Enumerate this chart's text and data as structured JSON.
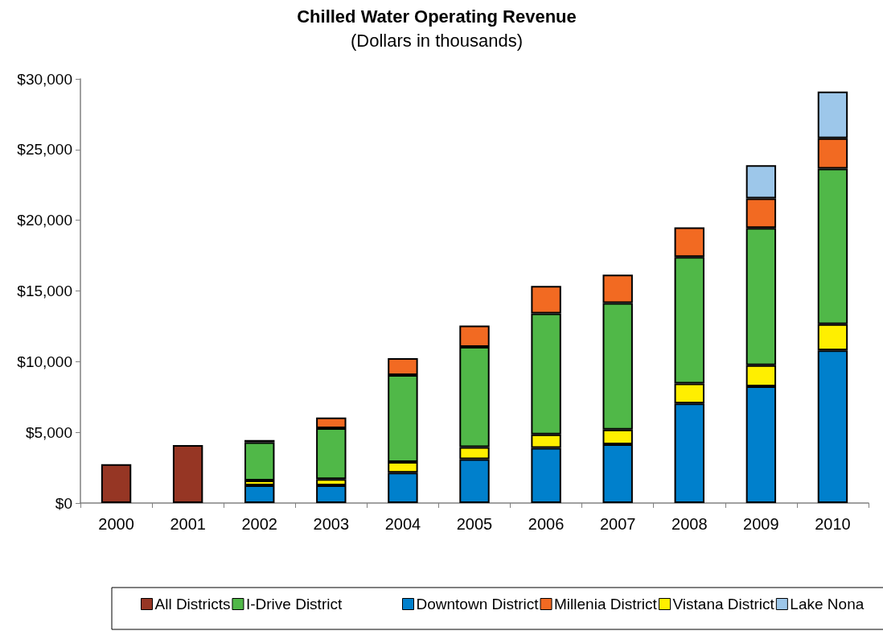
{
  "chart_data": {
    "type": "bar",
    "title": "Chilled Water Operating Revenue",
    "subtitle": "(Dollars in thousands)",
    "stacked": true,
    "legend": "bottom",
    "grid": false,
    "categories": [
      "2000",
      "2001",
      "2002",
      "2003",
      "2004",
      "2005",
      "2006",
      "2007",
      "2008",
      "2009",
      "2010"
    ],
    "ylim": [
      0,
      30000
    ],
    "yticks": [
      {
        "value": 0,
        "label": "$0"
      },
      {
        "value": 5000,
        "label": "$5,000"
      },
      {
        "value": 10000,
        "label": "$10,000"
      },
      {
        "value": 15000,
        "label": "$15,000"
      },
      {
        "value": 20000,
        "label": "$20,000"
      },
      {
        "value": 25000,
        "label": "$25,000"
      },
      {
        "value": 30000,
        "label": "$30,000"
      }
    ],
    "series": [
      {
        "name": "All Districts",
        "color": "#963624",
        "values": [
          2750,
          4100,
          null,
          null,
          null,
          null,
          null,
          null,
          null,
          null,
          null
        ]
      },
      {
        "name": "Downtown District",
        "color": "#0080cc",
        "values": [
          null,
          null,
          1250,
          1250,
          2150,
          3100,
          3900,
          4150,
          7050,
          8250,
          10800
        ]
      },
      {
        "name": "Vistana District",
        "color": "#ffef00",
        "values": [
          null,
          null,
          350,
          450,
          750,
          850,
          950,
          1050,
          1400,
          1500,
          1850
        ]
      },
      {
        "name": "I-Drive District",
        "color": "#50b848",
        "values": [
          null,
          null,
          2700,
          3600,
          6150,
          7100,
          8550,
          8950,
          8950,
          9700,
          11000
        ]
      },
      {
        "name": "Millenia District",
        "color": "#f26a22",
        "values": [
          null,
          null,
          150,
          750,
          1200,
          1500,
          1950,
          2000,
          2100,
          2100,
          2150
        ]
      },
      {
        "name": "Lake Nona",
        "color": "#9dc7ea",
        "values": [
          null,
          null,
          null,
          null,
          null,
          null,
          null,
          null,
          null,
          2350,
          3300
        ]
      }
    ]
  }
}
